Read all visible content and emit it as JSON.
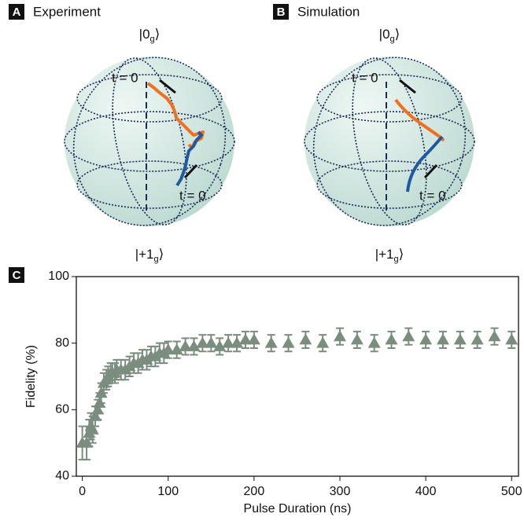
{
  "panels": [
    {
      "letter": "A",
      "title": "Experiment",
      "top_ket": [
        "|0",
        "g",
        "⟩"
      ],
      "bottom_ket": [
        "|+1",
        "g",
        "⟩"
      ],
      "start_labels": [
        "t = 0",
        "t = 0"
      ]
    },
    {
      "letter": "B",
      "title": "Simulation",
      "top_ket": [
        "|0",
        "g",
        "⟩"
      ],
      "bottom_ket": [
        "|+1",
        "g",
        "⟩"
      ],
      "start_labels": [
        "t = 0",
        "t = 0"
      ]
    }
  ],
  "chart_data": {
    "type": "scatter",
    "letter": "C",
    "xlabel": "Pulse Duration (ns)",
    "ylabel": "Fidelity (%)",
    "xlim": [
      -7,
      508
    ],
    "ylim": [
      40,
      100
    ],
    "xticks": [
      0,
      100,
      200,
      300,
      400,
      500
    ],
    "yticks": [
      40,
      60,
      80,
      100
    ],
    "series": [
      {
        "color": "#7b8d7f",
        "x": [
          0,
          5,
          8,
          10,
          12,
          15,
          18,
          20,
          22,
          25,
          28,
          30,
          33,
          35,
          38,
          40,
          45,
          50,
          55,
          60,
          65,
          70,
          75,
          80,
          85,
          90,
          95,
          100,
          110,
          120,
          130,
          140,
          150,
          160,
          170,
          180,
          190,
          200,
          220,
          240,
          260,
          280,
          300,
          320,
          340,
          360,
          380,
          400,
          420,
          440,
          460,
          480,
          500
        ],
        "values": [
          50,
          50,
          53,
          55,
          54,
          58,
          60,
          62,
          65,
          68,
          69,
          70,
          71,
          71,
          71,
          72,
          72,
          72,
          73,
          74,
          74,
          75,
          75,
          76,
          76,
          77,
          77,
          78,
          78,
          79,
          79,
          80,
          80,
          79,
          80,
          80,
          81,
          81,
          80,
          80,
          81,
          80,
          82,
          81,
          80,
          81,
          82,
          81,
          81,
          81,
          81,
          82,
          81
        ],
        "errors": [
          5,
          5,
          4,
          4,
          4,
          3,
          3,
          3,
          3,
          3,
          3,
          3,
          3,
          3,
          3,
          3,
          3,
          3,
          3,
          3,
          3,
          3,
          3,
          3,
          3,
          3,
          3,
          2.5,
          2.5,
          2.5,
          2.5,
          2.5,
          2.5,
          2.5,
          2.5,
          2.5,
          2.5,
          2.5,
          2.5,
          2.5,
          2.5,
          2.5,
          2.5,
          2.5,
          2.5,
          2.5,
          2.5,
          2.5,
          2.5,
          2.5,
          2.5,
          2.5,
          2.5
        ]
      }
    ]
  }
}
